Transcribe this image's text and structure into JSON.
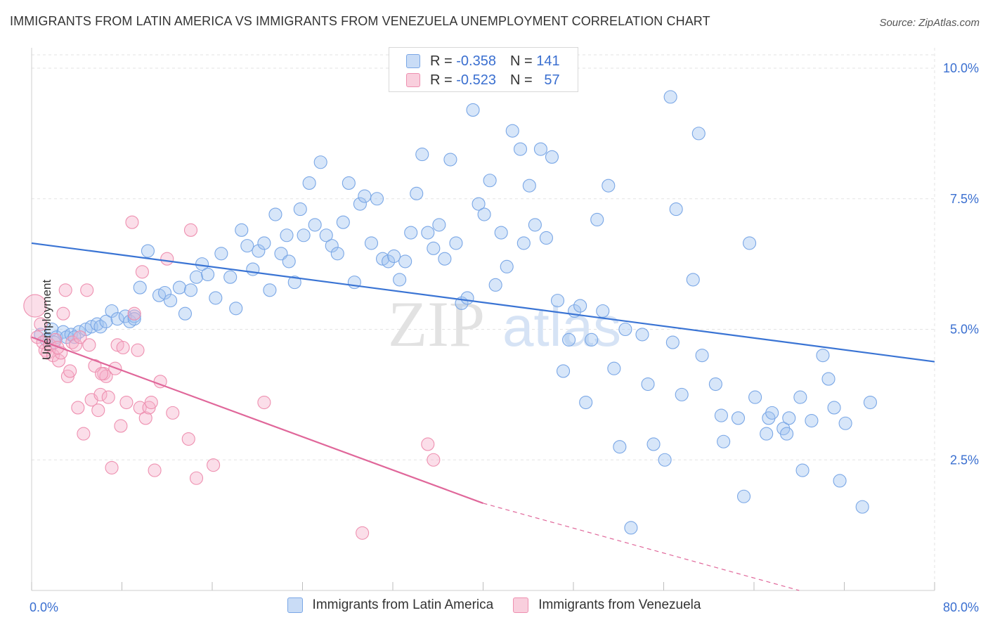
{
  "title": "IMMIGRANTS FROM LATIN AMERICA VS IMMIGRANTS FROM VENEZUELA UNEMPLOYMENT CORRELATION CHART",
  "source": "Source: ZipAtlas.com",
  "watermark": {
    "zip": "ZIP",
    "atlas": "atlas"
  },
  "legend_top": [
    {
      "r_label": "R =",
      "r_value": "-0.358",
      "n_label": "N =",
      "n_value": "141",
      "color": "#7aa7e6"
    },
    {
      "r_label": "R =",
      "r_value": "-0.523",
      "n_label": "N =",
      "n_value": "57",
      "color": "#ee90b0"
    }
  ],
  "chart_data": {
    "type": "scatter",
    "title": "IMMIGRANTS FROM LATIN AMERICA VS IMMIGRANTS FROM VENEZUELA UNEMPLOYMENT CORRELATION CHART",
    "xlabel": "",
    "ylabel": "Unemployment",
    "xlim": [
      0,
      80
    ],
    "ylim": [
      0,
      10.5
    ],
    "x_ticks": [
      0,
      80
    ],
    "x_tick_labels": [
      "0.0%",
      "80.0%"
    ],
    "y_ticks": [
      2.5,
      5.0,
      7.5,
      10.0
    ],
    "y_tick_labels": [
      "2.5%",
      "5.0%",
      "7.5%",
      "10.0%"
    ],
    "grid": true,
    "legend_position": "bottom",
    "series": [
      {
        "name": "Immigrants from Latin America",
        "color": "#7aa7e6",
        "line_color": "#3a74d4",
        "trend": {
          "x": [
            0,
            80
          ],
          "y": [
            6.65,
            4.38
          ]
        },
        "points": [
          [
            0.8,
            4.9
          ],
          [
            1.3,
            4.8
          ],
          [
            1.8,
            5.0
          ],
          [
            2.2,
            4.85
          ],
          [
            2.8,
            4.95
          ],
          [
            3.1,
            4.85
          ],
          [
            3.5,
            4.9
          ],
          [
            4.2,
            4.95
          ],
          [
            4.8,
            5.0
          ],
          [
            5.3,
            5.05
          ],
          [
            5.8,
            5.1
          ],
          [
            6.1,
            5.05
          ],
          [
            6.6,
            5.15
          ],
          [
            7.1,
            5.35
          ],
          [
            7.6,
            5.2
          ],
          [
            8.3,
            5.25
          ],
          [
            8.7,
            5.15
          ],
          [
            9.1,
            5.25
          ],
          [
            9.6,
            5.8
          ],
          [
            10.3,
            6.5
          ],
          [
            11.3,
            5.65
          ],
          [
            11.8,
            5.7
          ],
          [
            12.3,
            5.55
          ],
          [
            13.1,
            5.8
          ],
          [
            13.6,
            5.3
          ],
          [
            14.1,
            5.75
          ],
          [
            14.6,
            6.0
          ],
          [
            15.1,
            6.25
          ],
          [
            15.6,
            6.05
          ],
          [
            16.3,
            5.6
          ],
          [
            16.8,
            6.45
          ],
          [
            17.6,
            6.0
          ],
          [
            18.1,
            5.4
          ],
          [
            18.6,
            6.9
          ],
          [
            19.1,
            6.6
          ],
          [
            19.6,
            6.15
          ],
          [
            20.1,
            6.5
          ],
          [
            20.6,
            6.65
          ],
          [
            21.1,
            5.75
          ],
          [
            21.6,
            7.2
          ],
          [
            22.1,
            6.45
          ],
          [
            22.6,
            6.8
          ],
          [
            22.8,
            6.3
          ],
          [
            23.3,
            5.9
          ],
          [
            23.8,
            7.3
          ],
          [
            24.1,
            6.8
          ],
          [
            24.6,
            7.8
          ],
          [
            25.1,
            7.0
          ],
          [
            25.6,
            8.2
          ],
          [
            26.1,
            6.8
          ],
          [
            26.6,
            6.6
          ],
          [
            27.1,
            6.45
          ],
          [
            27.6,
            7.05
          ],
          [
            28.1,
            7.8
          ],
          [
            28.6,
            5.9
          ],
          [
            29.1,
            7.4
          ],
          [
            29.5,
            7.55
          ],
          [
            30.1,
            6.65
          ],
          [
            30.6,
            7.5
          ],
          [
            31.1,
            6.35
          ],
          [
            31.6,
            6.3
          ],
          [
            32.1,
            6.4
          ],
          [
            32.6,
            5.95
          ],
          [
            33.1,
            6.3
          ],
          [
            33.6,
            6.85
          ],
          [
            34.1,
            7.6
          ],
          [
            34.6,
            8.35
          ],
          [
            35.1,
            6.85
          ],
          [
            35.6,
            6.55
          ],
          [
            36.1,
            7.0
          ],
          [
            36.6,
            6.35
          ],
          [
            37.1,
            8.25
          ],
          [
            37.6,
            6.65
          ],
          [
            38.1,
            5.5
          ],
          [
            38.6,
            5.6
          ],
          [
            39.1,
            9.2
          ],
          [
            39.6,
            7.4
          ],
          [
            40.1,
            7.2
          ],
          [
            40.6,
            7.85
          ],
          [
            41.1,
            5.85
          ],
          [
            41.6,
            6.85
          ],
          [
            42.1,
            6.2
          ],
          [
            42.6,
            8.8
          ],
          [
            43.3,
            8.45
          ],
          [
            43.6,
            6.65
          ],
          [
            44.1,
            7.75
          ],
          [
            44.6,
            7.0
          ],
          [
            45.1,
            8.45
          ],
          [
            45.6,
            6.75
          ],
          [
            46.1,
            8.3
          ],
          [
            46.6,
            5.55
          ],
          [
            47.1,
            4.2
          ],
          [
            47.6,
            4.8
          ],
          [
            48.1,
            5.35
          ],
          [
            48.6,
            5.45
          ],
          [
            49.1,
            3.6
          ],
          [
            49.6,
            4.8
          ],
          [
            50.1,
            7.1
          ],
          [
            50.6,
            5.35
          ],
          [
            51.1,
            7.75
          ],
          [
            51.6,
            4.25
          ],
          [
            52.1,
            2.75
          ],
          [
            52.6,
            5.0
          ],
          [
            53.1,
            1.2
          ],
          [
            54.1,
            4.9
          ],
          [
            54.6,
            3.95
          ],
          [
            55.1,
            2.8
          ],
          [
            56.1,
            2.5
          ],
          [
            56.6,
            9.45
          ],
          [
            56.8,
            4.75
          ],
          [
            57.1,
            7.3
          ],
          [
            57.6,
            3.75
          ],
          [
            58.6,
            5.95
          ],
          [
            59.1,
            8.75
          ],
          [
            59.4,
            4.5
          ],
          [
            60.6,
            3.95
          ],
          [
            61.1,
            3.35
          ],
          [
            61.3,
            2.85
          ],
          [
            62.6,
            3.3
          ],
          [
            63.1,
            1.8
          ],
          [
            63.6,
            6.65
          ],
          [
            64.1,
            3.7
          ],
          [
            65.1,
            3.0
          ],
          [
            65.3,
            3.3
          ],
          [
            65.6,
            3.4
          ],
          [
            66.6,
            3.1
          ],
          [
            66.9,
            3.0
          ],
          [
            67.1,
            3.3
          ],
          [
            68.1,
            3.7
          ],
          [
            68.3,
            2.3
          ],
          [
            69.1,
            3.25
          ],
          [
            70.1,
            4.5
          ],
          [
            70.6,
            4.05
          ],
          [
            71.1,
            3.5
          ],
          [
            71.6,
            2.1
          ],
          [
            72.1,
            3.2
          ],
          [
            73.6,
            1.6
          ],
          [
            74.3,
            3.6
          ],
          [
            2.0,
            4.75
          ],
          [
            3.8,
            4.85
          ],
          [
            9.1,
            5.2
          ]
        ]
      },
      {
        "name": "Immigrants from Venezuela",
        "color": "#ee90b0",
        "line_color": "#e0679a",
        "trend": {
          "x": [
            0,
            40
          ],
          "y": [
            4.85,
            1.67
          ]
        },
        "trend_dashed": {
          "x": [
            40,
            68
          ],
          "y": [
            1.67,
            -0.55
          ]
        },
        "points": [
          [
            0.3,
            5.45
          ],
          [
            0.5,
            4.85
          ],
          [
            0.8,
            5.1
          ],
          [
            1.0,
            4.75
          ],
          [
            1.2,
            4.6
          ],
          [
            1.4,
            4.55
          ],
          [
            1.6,
            4.7
          ],
          [
            1.9,
            4.5
          ],
          [
            2.1,
            4.8
          ],
          [
            2.4,
            4.4
          ],
          [
            2.6,
            4.55
          ],
          [
            2.8,
            5.3
          ],
          [
            3.0,
            5.75
          ],
          [
            3.2,
            4.1
          ],
          [
            3.4,
            4.2
          ],
          [
            3.6,
            4.75
          ],
          [
            3.9,
            4.7
          ],
          [
            4.1,
            3.5
          ],
          [
            4.3,
            4.85
          ],
          [
            4.6,
            3.0
          ],
          [
            4.9,
            5.75
          ],
          [
            5.1,
            4.7
          ],
          [
            5.3,
            3.65
          ],
          [
            5.6,
            4.3
          ],
          [
            5.9,
            3.45
          ],
          [
            6.1,
            3.75
          ],
          [
            6.4,
            4.15
          ],
          [
            6.6,
            4.1
          ],
          [
            6.8,
            3.7
          ],
          [
            7.1,
            2.35
          ],
          [
            7.4,
            4.25
          ],
          [
            7.6,
            4.7
          ],
          [
            7.9,
            3.15
          ],
          [
            8.1,
            4.65
          ],
          [
            8.4,
            3.6
          ],
          [
            8.9,
            7.05
          ],
          [
            9.1,
            5.3
          ],
          [
            9.4,
            4.6
          ],
          [
            9.6,
            3.5
          ],
          [
            9.8,
            6.1
          ],
          [
            10.1,
            3.3
          ],
          [
            10.4,
            3.5
          ],
          [
            10.6,
            3.6
          ],
          [
            10.9,
            2.3
          ],
          [
            11.4,
            4.0
          ],
          [
            12.0,
            6.35
          ],
          [
            12.5,
            3.4
          ],
          [
            13.9,
            2.9
          ],
          [
            14.1,
            6.9
          ],
          [
            14.6,
            2.15
          ],
          [
            16.1,
            2.4
          ],
          [
            20.6,
            3.6
          ],
          [
            29.3,
            1.1
          ],
          [
            35.1,
            2.8
          ],
          [
            35.6,
            2.5
          ],
          [
            6.2,
            4.15
          ],
          [
            2.3,
            4.65
          ]
        ]
      }
    ]
  }
}
